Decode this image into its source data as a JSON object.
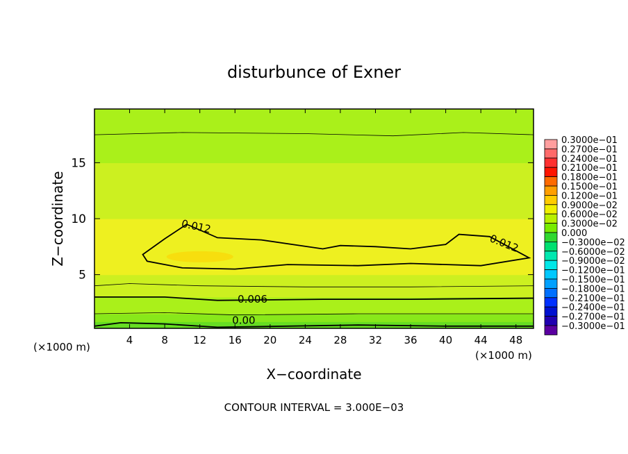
{
  "chart_data": {
    "type": "heatmap",
    "title": "disturbunce of Exner",
    "xlabel": "X−coordinate",
    "ylabel": "Z−coordinate",
    "x_unit_left": "(×1000 m)",
    "x_unit_right": "(×1000 m)",
    "footer": "CONTOUR INTERVAL = 3.000E−03",
    "xlim": [
      0,
      50
    ],
    "ylim": [
      0.2,
      19.8
    ],
    "x_ticks": [
      4,
      8,
      12,
      16,
      20,
      24,
      28,
      32,
      36,
      40,
      44,
      48
    ],
    "x_tick_labels": [
      "4",
      "8",
      "12",
      "16",
      "20",
      "24",
      "28",
      "32",
      "36",
      "40",
      "44",
      "48"
    ],
    "y_ticks": [
      5,
      10,
      15
    ],
    "y_tick_labels": [
      "5",
      "10",
      "15"
    ],
    "contour_labels": [
      {
        "text": "0.012",
        "x": 11.5,
        "z": 9.0
      },
      {
        "text": "0.012",
        "x": 46.5,
        "z": 7.5
      },
      {
        "text": "0.006",
        "x": 18.0,
        "z": 2.5
      },
      {
        "text": "0.00",
        "x": 17.0,
        "z": 0.6
      }
    ],
    "field_profile": {
      "z": [
        0.2,
        0.8,
        1.5,
        2.2,
        3.0,
        4.0,
        5.0,
        5.8,
        6.5,
        7.3,
        8.5,
        10.0,
        11.5,
        13.0,
        15.0,
        17.0,
        18.5,
        19.8
      ],
      "values": [
        0.0,
        0.002,
        0.004,
        0.006,
        0.0075,
        0.009,
        0.0105,
        0.012,
        0.013,
        0.0125,
        0.0115,
        0.0105,
        0.0098,
        0.009,
        0.0075,
        0.006,
        0.0048,
        0.0045
      ]
    },
    "contours": [
      {
        "level": 0.012,
        "closed": true,
        "points": [
          [
            5.5,
            6.8
          ],
          [
            8,
            8.2
          ],
          [
            10.5,
            9.5
          ],
          [
            14,
            8.3
          ],
          [
            19,
            8.1
          ],
          [
            26,
            7.3
          ],
          [
            28,
            7.6
          ],
          [
            32,
            7.5
          ],
          [
            36,
            7.3
          ],
          [
            40,
            7.7
          ],
          [
            41.5,
            8.6
          ],
          [
            45,
            8.4
          ],
          [
            49.5,
            6.5
          ],
          [
            44,
            5.8
          ],
          [
            36,
            6.0
          ],
          [
            30,
            5.8
          ],
          [
            22,
            5.9
          ],
          [
            16,
            5.5
          ],
          [
            10,
            5.6
          ],
          [
            6,
            6.2
          ]
        ]
      },
      {
        "level": 0.006,
        "closed": false,
        "points": [
          [
            0,
            3.0
          ],
          [
            8,
            3.0
          ],
          [
            14,
            2.7
          ],
          [
            26,
            2.8
          ],
          [
            36,
            2.8
          ],
          [
            50,
            2.9
          ]
        ]
      },
      {
        "level": 0.003,
        "closed": false,
        "points": [
          [
            0,
            1.5
          ],
          [
            8,
            1.6
          ],
          [
            16,
            1.4
          ],
          [
            30,
            1.5
          ],
          [
            50,
            1.5
          ]
        ]
      },
      {
        "level": 0.009,
        "closed": false,
        "points": [
          [
            0,
            4.0
          ],
          [
            4,
            4.2
          ],
          [
            12,
            4.0
          ],
          [
            24,
            3.9
          ],
          [
            36,
            3.9
          ],
          [
            50,
            4.0
          ]
        ]
      },
      {
        "level": 0.0,
        "closed": false,
        "points": [
          [
            0,
            0.4
          ],
          [
            3,
            0.7
          ],
          [
            8,
            0.6
          ],
          [
            14,
            0.3
          ],
          [
            22,
            0.4
          ],
          [
            30,
            0.5
          ],
          [
            40,
            0.4
          ],
          [
            50,
            0.4
          ]
        ]
      },
      {
        "level": 0.006,
        "closed": false,
        "points": [
          [
            0,
            17.5
          ],
          [
            10,
            17.7
          ],
          [
            24,
            17.6
          ],
          [
            34,
            17.4
          ],
          [
            42,
            17.7
          ],
          [
            50,
            17.5
          ]
        ]
      }
    ],
    "colorbar": {
      "labels": [
        "0.3000e−01",
        "0.2700e−01",
        "0.2400e−01",
        "0.2100e−01",
        "0.1800e−01",
        "0.1500e−01",
        "0.1200e−01",
        "0.9000e−02",
        "0.6000e−02",
        "0.3000e−02",
        "0.000",
        "−0.3000e−02",
        "−0.6000e−02",
        "−0.9000e−02",
        "−0.1200e−01",
        "−0.1500e−01",
        "−0.1800e−01",
        "−0.2100e−01",
        "−0.2400e−01",
        "−0.2700e−01",
        "−0.3000e−01"
      ],
      "colors": [
        "#ff9e9e",
        "#ff6a6a",
        "#ff3030",
        "#ff1400",
        "#ff6a00",
        "#ff9f00",
        "#ffcc00",
        "#f0f000",
        "#b8f000",
        "#78ec00",
        "#30d830",
        "#00e070",
        "#00e8b0",
        "#00e8e8",
        "#00c8ff",
        "#00a0ff",
        "#0070ff",
        "#0030ff",
        "#0010d0",
        "#2000b0",
        "#5a00a0"
      ]
    },
    "field_colors": {
      "0.000": "#66dd22",
      "0.003": "#88e81a",
      "0.006": "#aaf01a",
      "0.009": "#ccf020",
      "0.012": "#eef020",
      "0.015": "#ffd000"
    }
  }
}
